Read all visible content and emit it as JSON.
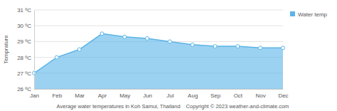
{
  "chart_data": {
    "type": "area",
    "title": "Average water temperatures in Koh Samui, Thailand",
    "annotations": [
      "Copyright © 2023  weather-and-climate.com"
    ],
    "y_label": "Temprature",
    "categories": [
      "Jan",
      "Feb",
      "Mar",
      "Apr",
      "May",
      "Jun",
      "Jul",
      "Aug",
      "Sep",
      "Oct",
      "Nov",
      "Dec"
    ],
    "series": [
      {
        "name": "Water temp",
        "color": "#5ab4e8",
        "marker": "circle",
        "values": [
          27.0,
          28.0,
          28.5,
          29.5,
          29.3,
          29.2,
          29.0,
          28.8,
          28.7,
          28.7,
          28.6,
          28.6
        ]
      }
    ],
    "ylim": [
      26,
      31
    ],
    "yticks": [
      {
        "value": 26,
        "label": "26 ºC"
      },
      {
        "value": 27,
        "label": "27 ºC"
      },
      {
        "value": 28,
        "label": "28 ºC"
      },
      {
        "value": 29,
        "label": "29 ºC"
      },
      {
        "value": 30,
        "label": "30 ºC"
      },
      {
        "value": 31,
        "label": "31 ºC"
      }
    ],
    "grid": true,
    "legend": "top-right"
  }
}
